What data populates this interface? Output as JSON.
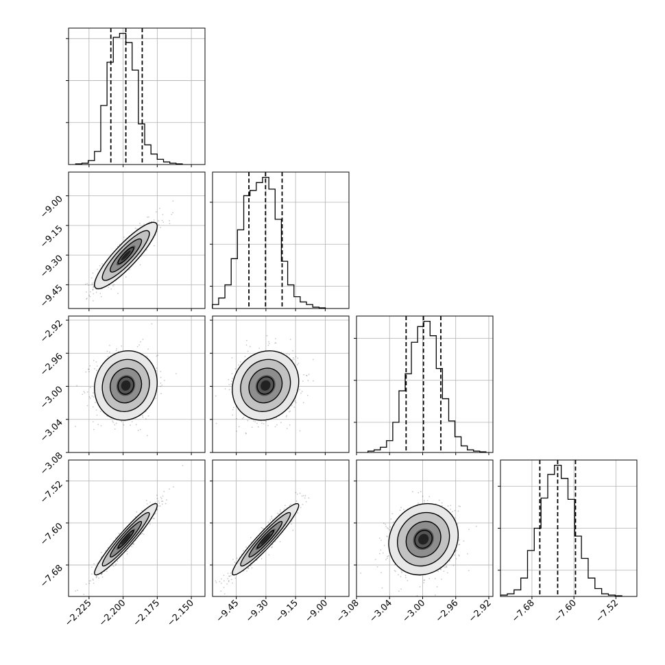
{
  "chart_data": {
    "type": "corner",
    "parameters": [
      {
        "range": [
          -2.24,
          -2.14
        ],
        "ticks": [
          -2.225,
          -2.2,
          -2.175,
          -2.15
        ],
        "tick_labels": [
          "−2.225",
          "−2.200",
          "−2.175",
          "−2.150"
        ],
        "quantiles": [
          -2.209,
          -2.198,
          -2.186
        ],
        "histogram": [
          0.005,
          0.01,
          0.03,
          0.1,
          0.45,
          0.78,
          0.97,
          1.0,
          0.93,
          0.72,
          0.31,
          0.15,
          0.08,
          0.04,
          0.02,
          0.01,
          0.005
        ],
        "hist_ylim": [
          0,
          1.04
        ],
        "hist_ticks": [
          0.32,
          0.64,
          0.96
        ]
      },
      {
        "range": [
          -9.57,
          -8.88
        ],
        "ticks": [
          -9.45,
          -9.3,
          -9.15,
          -9.0
        ],
        "tick_labels": [
          "−9.45",
          "−9.30",
          "−9.15",
          "−9.00"
        ],
        "quantiles": [
          -9.386,
          -9.302,
          -9.218
        ],
        "histogram": [
          0.03,
          0.08,
          0.18,
          0.38,
          0.6,
          0.86,
          0.9,
          0.96,
          1.0,
          0.91,
          0.68,
          0.36,
          0.18,
          0.09,
          0.05,
          0.03,
          0.01,
          0.005
        ],
        "hist_ylim": [
          0,
          1.04
        ],
        "hist_ticks": [
          0.17,
          0.49,
          0.81
        ],
        "y_ticks": [
          -9.45,
          -9.3,
          -9.15,
          -9.0
        ],
        "y_tick_labels": [
          "−9.45",
          "−9.30",
          "−9.15",
          "−9.00"
        ]
      },
      {
        "range": [
          -3.08,
          -2.915
        ],
        "ticks": [
          -3.08,
          -3.04,
          -3.0,
          -2.96,
          -2.92
        ],
        "tick_labels": [
          "−3.08",
          "−3.04",
          "−3.00",
          "−2.96",
          "−2.92"
        ],
        "quantiles": [
          -3.02,
          -2.999,
          -2.978
        ],
        "histogram": [
          0.01,
          0.02,
          0.04,
          0.09,
          0.23,
          0.47,
          0.6,
          0.84,
          0.96,
          1.0,
          0.89,
          0.64,
          0.41,
          0.24,
          0.12,
          0.05,
          0.02,
          0.01,
          0.005
        ],
        "hist_ylim": [
          0,
          1.04
        ],
        "hist_ticks": [
          0.23,
          0.55,
          0.87
        ],
        "y_ticks": [
          -3.08,
          -3.04,
          -3.0,
          -2.96,
          -2.92
        ],
        "y_tick_labels": [
          "−3.08",
          "−3.04",
          "−3.00",
          "−2.96",
          "−2.92"
        ]
      },
      {
        "range": [
          -7.74,
          -7.48
        ],
        "ticks": [
          -7.68,
          -7.6,
          -7.52
        ],
        "tick_labels": [
          "−7.68",
          "−7.60",
          "−7.52"
        ],
        "quantiles": [
          -7.665,
          -7.631,
          -7.597
        ],
        "histogram": [
          0.01,
          0.02,
          0.05,
          0.14,
          0.35,
          0.52,
          0.75,
          0.93,
          1.0,
          0.9,
          0.74,
          0.46,
          0.29,
          0.14,
          0.06,
          0.02,
          0.01,
          0.005
        ],
        "hist_ylim": [
          0,
          1.04
        ],
        "hist_ticks": [
          0.2,
          0.52,
          0.84
        ],
        "y_ticks": [
          -7.68,
          -7.6,
          -7.52
        ],
        "y_tick_labels": [
          "−7.68",
          "−7.60",
          "−7.52"
        ]
      }
    ],
    "pairs": [
      {
        "row": 1,
        "col": 0,
        "center": [
          -2.198,
          -9.302
        ],
        "correlation": 0.88
      },
      {
        "row": 2,
        "col": 0,
        "center": [
          -2.198,
          -2.999
        ],
        "correlation": 0.08
      },
      {
        "row": 2,
        "col": 1,
        "center": [
          -9.302,
          -2.999
        ],
        "correlation": 0.12
      },
      {
        "row": 3,
        "col": 0,
        "center": [
          -2.198,
          -7.631
        ],
        "correlation": 0.95
      },
      {
        "row": 3,
        "col": 1,
        "center": [
          -9.302,
          -7.631
        ],
        "correlation": 0.95
      },
      {
        "row": 3,
        "col": 2,
        "center": [
          -2.999,
          -7.631
        ],
        "correlation": 0.12
      }
    ],
    "contour_levels_sigma": [
      0.5,
      1.0,
      1.5,
      2.0
    ],
    "grid": true,
    "colors": {
      "line": "#000000",
      "grid": "#b0b0b0",
      "points": "#000000"
    }
  }
}
